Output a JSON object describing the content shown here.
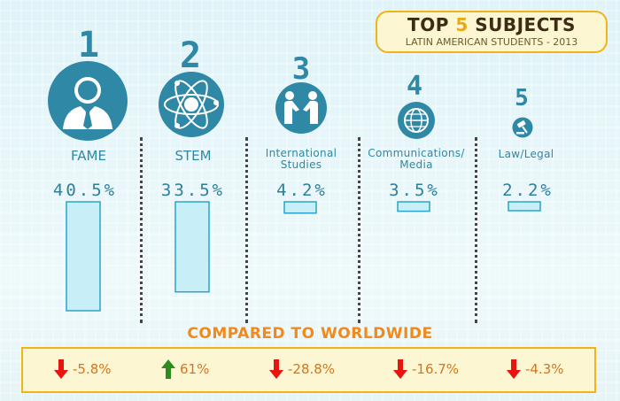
{
  "header": {
    "title_prefix": "TOP",
    "title_number": "5",
    "title_suffix": "SUBJECTS",
    "subtitle": "LATIN AMERICAN STUDENTS - 2013"
  },
  "colors": {
    "primary": "#2f88a6",
    "bar_fill": "#c8eef8",
    "bar_stroke": "#2aa4c9",
    "accent": "#f08a1c",
    "box_border": "#f0b418",
    "down": "#e8140f",
    "up": "#2f8a1f"
  },
  "subjects": [
    {
      "rank": "1",
      "label_line1": "FAME",
      "label_line2": "",
      "percent_label": "40.5%",
      "icon": "businessman-icon"
    },
    {
      "rank": "2",
      "label_line1": "STEM",
      "label_line2": "",
      "percent_label": "33.5%",
      "icon": "atom-icon"
    },
    {
      "rank": "3",
      "label_line1": "International",
      "label_line2": "Studies",
      "percent_label": "4.2%",
      "icon": "handshake-icon"
    },
    {
      "rank": "4",
      "label_line1": "Communications/",
      "label_line2": "Media",
      "percent_label": "3.5%",
      "icon": "globe-network-icon"
    },
    {
      "rank": "5",
      "label_line1": "Law/Legal",
      "label_line2": "",
      "percent_label": "2.2%",
      "icon": "gavel-icon"
    }
  ],
  "comparison": {
    "title": "COMPARED TO WORLDWIDE",
    "items": [
      {
        "value": "-5.8%",
        "direction": "down"
      },
      {
        "value": "61%",
        "direction": "up"
      },
      {
        "value": "-28.8%",
        "direction": "down"
      },
      {
        "value": "-16.7%",
        "direction": "down"
      },
      {
        "value": "-4.3%",
        "direction": "down"
      }
    ]
  },
  "chart_data": {
    "type": "bar",
    "title": "TOP 5 SUBJECTS",
    "subtitle": "LATIN AMERICAN STUDENTS - 2013",
    "categories": [
      "FAME",
      "STEM",
      "International Studies",
      "Communications/Media",
      "Law/Legal"
    ],
    "values": [
      40.5,
      33.5,
      4.2,
      3.5,
      2.2
    ],
    "unit": "%",
    "comparison_to_worldwide": [
      -5.8,
      61,
      -28.8,
      -16.7,
      -4.3
    ]
  }
}
